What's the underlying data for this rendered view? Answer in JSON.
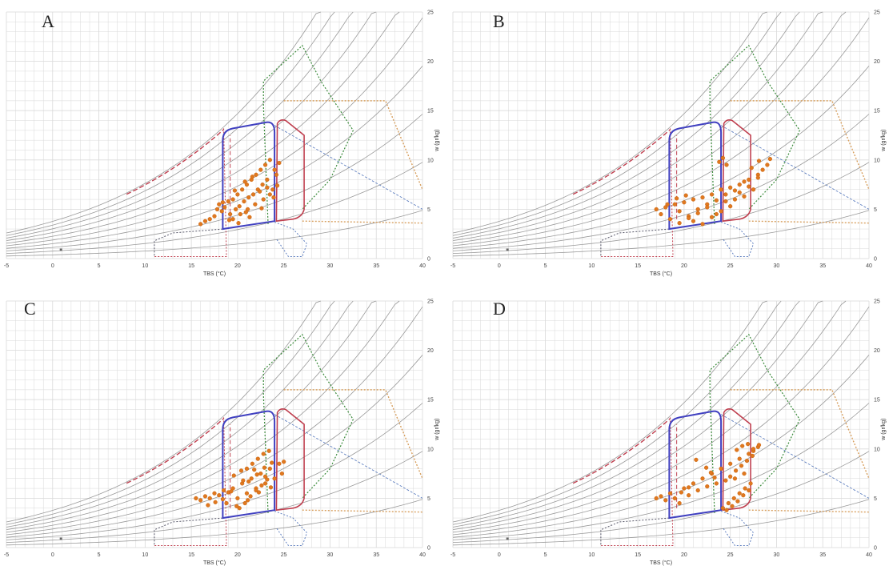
{
  "panels": [
    {
      "letter": "A"
    },
    {
      "letter": "B"
    },
    {
      "letter": "C"
    },
    {
      "letter": "D"
    }
  ],
  "colors": {
    "grid": "#d9d9d9",
    "rh_curves": "#9a9a9a",
    "comfort_blue": "#4040c0",
    "comfort_red": "#c04050",
    "green_zone": "#3a8a3a",
    "orange_zone": "#d8a060",
    "blue_dashed": "#6080c0",
    "points": "#e07820"
  },
  "chart_data": [
    {
      "panel": "A",
      "type": "scatter",
      "xlabel": "TBS (°C)",
      "ylabel": "w (gr/kg)",
      "xlim": [
        -5,
        40
      ],
      "ylim": [
        0,
        25
      ],
      "x_ticks": [
        "-5",
        "0",
        "5",
        "10",
        "15",
        "20",
        "25",
        "30",
        "35",
        "40"
      ],
      "y_ticks": [
        "0",
        "5",
        "10",
        "15",
        "20",
        "25"
      ],
      "grid": true,
      "points_x": [
        16,
        16.5,
        17,
        17.5,
        17.8,
        18,
        18.3,
        18.6,
        19,
        19.2,
        19.5,
        19.8,
        20,
        20.2,
        20.5,
        20.7,
        21,
        21.2,
        21.5,
        21.7,
        22,
        22.2,
        22.5,
        22.7,
        23,
        23.2,
        23.5,
        23.8,
        24,
        24.2,
        24.5,
        19.5,
        20.3,
        21.1,
        21.9,
        22.8,
        23.5,
        20.8,
        21.6,
        22.4,
        23.2,
        19.1,
        20.1,
        21.3,
        22.6,
        23.9,
        24.3,
        18.4,
        19.7,
        20.9
      ],
      "points_y": [
        3.5,
        3.8,
        4,
        4.3,
        5,
        5.5,
        4.8,
        5.2,
        5.8,
        4.5,
        6,
        5,
        6.5,
        5.3,
        7,
        5.8,
        7.5,
        6.2,
        8,
        6.5,
        8.5,
        7,
        9,
        7.5,
        9.5,
        8,
        10,
        7,
        9,
        8.5,
        9.7,
        4,
        4.5,
        5,
        5.5,
        6,
        6.5,
        7.8,
        8.3,
        6.8,
        7.2,
        3.9,
        3.6,
        4.2,
        5.1,
        6.2,
        7.4,
        5.7,
        6.9,
        4.7
      ]
    },
    {
      "panel": "B",
      "type": "scatter",
      "xlabel": "TBS (°C)",
      "ylabel": "w (gr/kg)",
      "xlim": [
        -5,
        40
      ],
      "ylim": [
        0,
        25
      ],
      "x_ticks": [
        "-5",
        "0",
        "5",
        "10",
        "15",
        "20",
        "25",
        "30",
        "35",
        "40"
      ],
      "y_ticks": [
        "0",
        "5",
        "10",
        "15",
        "20",
        "25"
      ],
      "grid": true,
      "points_x": [
        17,
        17.5,
        18,
        18.5,
        19,
        19.5,
        20,
        20.5,
        21,
        21.5,
        22,
        22.5,
        23,
        23.5,
        24,
        24.5,
        25,
        25.5,
        26,
        26.5,
        27,
        27.5,
        28,
        28.5,
        29,
        21,
        22,
        23,
        24,
        25,
        26,
        27,
        28,
        19.5,
        20.5,
        21.5,
        22.5,
        23.5,
        24.5,
        25.5,
        26.5,
        23.8,
        24.2,
        24.6,
        18.2,
        19.2,
        20.2,
        27.3,
        28.1,
        29.3
      ],
      "points_y": [
        5,
        4.5,
        5.2,
        4,
        5.5,
        4.8,
        5.7,
        4.3,
        6,
        5,
        6.2,
        5.5,
        6.5,
        4.5,
        7,
        5.8,
        7.2,
        6,
        7.5,
        6.3,
        8,
        7,
        8.5,
        9,
        9.5,
        3.8,
        3.5,
        4.2,
        4.8,
        5.3,
        6.7,
        7.3,
        8.2,
        3.6,
        4.1,
        4.6,
        5.2,
        5.9,
        6.5,
        6.9,
        7.8,
        9.8,
        10.2,
        9.5,
        5.5,
        6.1,
        6.4,
        9.2,
        9.9,
        10.1
      ]
    },
    {
      "panel": "C",
      "type": "scatter",
      "xlabel": "TBS (°C)",
      "ylabel": "w (gr/kg)",
      "xlim": [
        -5,
        40
      ],
      "ylim": [
        0,
        25
      ],
      "x_ticks": [
        "-5",
        "0",
        "5",
        "10",
        "15",
        "20",
        "25",
        "30",
        "35",
        "40"
      ],
      "y_ticks": [
        "0",
        "5",
        "10",
        "15",
        "20",
        "25"
      ],
      "grid": true,
      "points_x": [
        15.5,
        16,
        16.5,
        17,
        17.5,
        18,
        18.5,
        19,
        19.5,
        20,
        20.5,
        21,
        21.5,
        22,
        22.5,
        23,
        23.5,
        24,
        24.5,
        25,
        20.2,
        20.8,
        21.4,
        22,
        22.6,
        23.2,
        21,
        21.6,
        22.2,
        22.8,
        23.4,
        19.6,
        20.4,
        21.2,
        22.1,
        22.9,
        23.7,
        18.8,
        19.9,
        21.1,
        22.3,
        23.6,
        24.8,
        16.8,
        17.6,
        18.4,
        19.3,
        20.6,
        21.8,
        23
      ],
      "points_y": [
        5,
        4.8,
        5.2,
        5,
        5.5,
        5.3,
        5.8,
        5.6,
        6,
        5,
        6.5,
        5.5,
        7,
        6,
        7.5,
        6.5,
        8,
        7,
        8.5,
        8.7,
        4,
        4.5,
        5.2,
        5.8,
        6.3,
        6.9,
        8,
        8.5,
        9,
        9.5,
        9.8,
        7.3,
        7.8,
        6.7,
        7.4,
        8.1,
        8.6,
        4.5,
        4.2,
        4.8,
        5.6,
        6.1,
        7.5,
        4.3,
        4.6,
        4.9,
        5.7,
        6.8,
        7.9,
        7.2
      ]
    },
    {
      "panel": "D",
      "type": "scatter",
      "xlabel": "TBS (°C)",
      "ylabel": "w (gr/kg)",
      "xlim": [
        -5,
        40
      ],
      "ylim": [
        0,
        25
      ],
      "x_ticks": [
        "-5",
        "0",
        "5",
        "10",
        "15",
        "20",
        "25",
        "30",
        "35",
        "40"
      ],
      "y_ticks": [
        "0",
        "5",
        "10",
        "15",
        "20",
        "25"
      ],
      "grid": true,
      "points_x": [
        17,
        17.5,
        18,
        18.5,
        19,
        19.5,
        20,
        20.5,
        21,
        21.5,
        22,
        22.5,
        23,
        23.5,
        24,
        24.5,
        25,
        25.5,
        26,
        26.5,
        27,
        27.5,
        28,
        24.2,
        24.8,
        25.4,
        26,
        26.6,
        27.2,
        25,
        25.6,
        26.2,
        26.8,
        27.4,
        24.6,
        25.2,
        25.8,
        26.4,
        27,
        22.4,
        22.9,
        23.3,
        21.3,
        20.5,
        19.7,
        25.7,
        26.3,
        26.9,
        27.5,
        28.1
      ],
      "points_y": [
        5,
        5.2,
        4.8,
        5.5,
        5,
        4.5,
        6,
        5.3,
        6.5,
        5.8,
        7,
        6.2,
        7.5,
        6.5,
        8,
        6.8,
        8.5,
        7,
        9,
        7.5,
        9.5,
        9.8,
        10.2,
        4,
        4.5,
        5,
        5.5,
        6,
        6.5,
        7.2,
        7.8,
        8.3,
        8.8,
        9.3,
        3.8,
        4.2,
        4.7,
        5.3,
        5.8,
        8.1,
        7.6,
        7.1,
        8.9,
        6.1,
        5.6,
        9.9,
        10.3,
        10.5,
        10,
        10.4
      ]
    }
  ]
}
